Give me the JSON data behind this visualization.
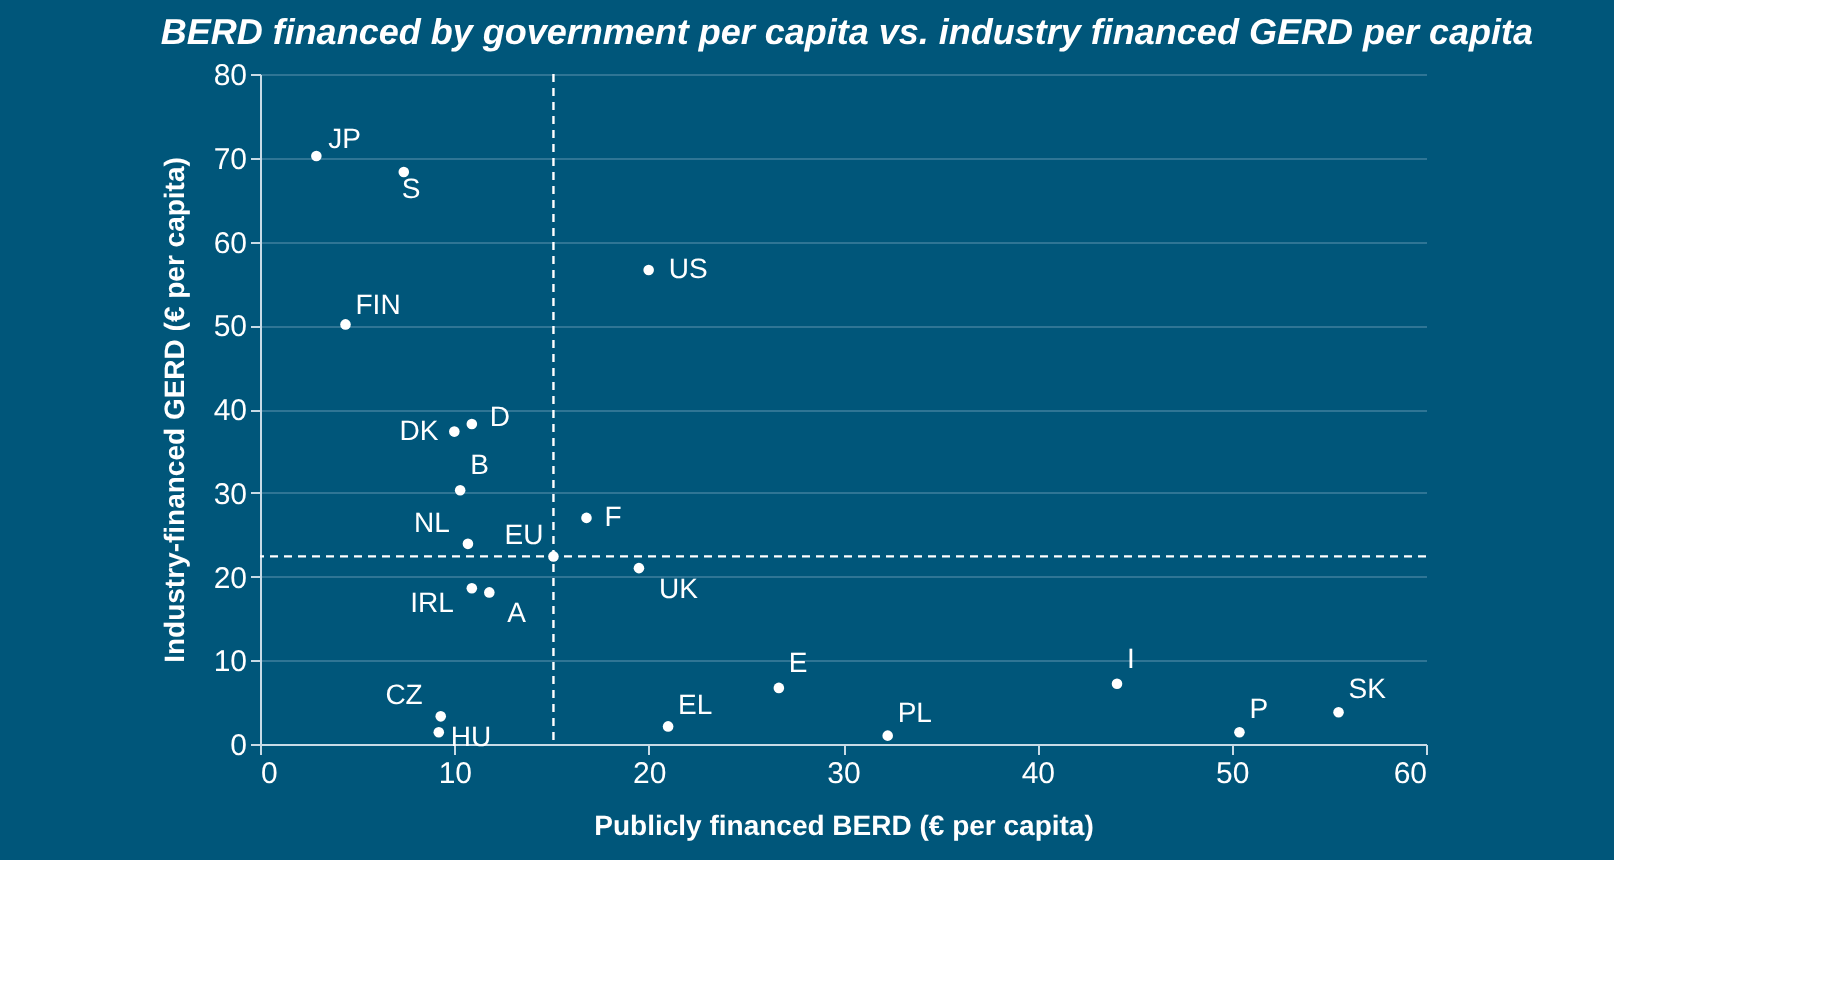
{
  "chart_data": {
    "type": "scatter",
    "title": "BERD financed by government per capita vs. industry financed GERD per capita",
    "xlabel": "Publicly financed BERD (€ per capita)",
    "ylabel": "Industry-financed GERD (€ per capita)",
    "x": [
      2.9,
      7.4,
      4.4,
      20.0,
      10.0,
      10.9,
      10.3,
      10.7,
      15.1,
      16.8,
      19.5,
      10.9,
      11.8,
      9.3,
      9.2,
      21.0,
      26.7,
      32.3,
      44.1,
      50.4,
      55.5
    ],
    "series": [
      {
        "color": "#ffffff",
        "values": [
          70.2,
          68.3,
          50.1,
          56.6,
          37.3,
          38.2,
          30.3,
          23.9,
          22.4,
          27.0,
          21.0,
          18.6,
          18.1,
          3.3,
          1.4,
          2.1,
          6.7,
          1.0,
          7.2,
          1.4,
          3.8
        ]
      }
    ],
    "annotations": [
      {
        "text": "JP",
        "x": 2.9,
        "y": 70.2
      },
      {
        "text": "S",
        "x": 7.4,
        "y": 68.3
      },
      {
        "text": "FIN",
        "x": 4.4,
        "y": 50.1
      },
      {
        "text": "US",
        "x": 20.0,
        "y": 56.6
      },
      {
        "text": "DK",
        "x": 10.0,
        "y": 37.3
      },
      {
        "text": "D",
        "x": 10.9,
        "y": 38.2
      },
      {
        "text": "B",
        "x": 10.3,
        "y": 30.3
      },
      {
        "text": "NL",
        "x": 10.7,
        "y": 23.9
      },
      {
        "text": "EU",
        "x": 15.1,
        "y": 22.4
      },
      {
        "text": "F",
        "x": 16.8,
        "y": 27.0
      },
      {
        "text": "UK",
        "x": 19.5,
        "y": 21.0
      },
      {
        "text": "IRL",
        "x": 10.9,
        "y": 18.6
      },
      {
        "text": "A",
        "x": 11.8,
        "y": 18.1
      },
      {
        "text": "CZ",
        "x": 9.3,
        "y": 3.3
      },
      {
        "text": "HU",
        "x": 9.2,
        "y": 1.4
      },
      {
        "text": "EL",
        "x": 21.0,
        "y": 2.1
      },
      {
        "text": "E",
        "x": 26.7,
        "y": 6.7
      },
      {
        "text": "PL",
        "x": 32.3,
        "y": 1.0
      },
      {
        "text": "I",
        "x": 44.1,
        "y": 7.2
      },
      {
        "text": "P",
        "x": 50.4,
        "y": 1.4
      },
      {
        "text": "SK",
        "x": 55.5,
        "y": 3.8
      }
    ],
    "ref_lines": [
      {
        "axis": "x",
        "value": 15.1,
        "color": "#ffffff",
        "line_style": "dashed"
      },
      {
        "axis": "y",
        "value": 22.4,
        "color": "#ffffff",
        "line_style": "dashed"
      }
    ],
    "xlim": [
      0,
      60
    ],
    "xticks": [
      0,
      10,
      20,
      30,
      40,
      50,
      60
    ],
    "ylim": [
      0,
      80
    ],
    "yticks": [
      0,
      10,
      20,
      30,
      40,
      50,
      60,
      70,
      80
    ],
    "grid": "y",
    "marker": "circle"
  }
}
